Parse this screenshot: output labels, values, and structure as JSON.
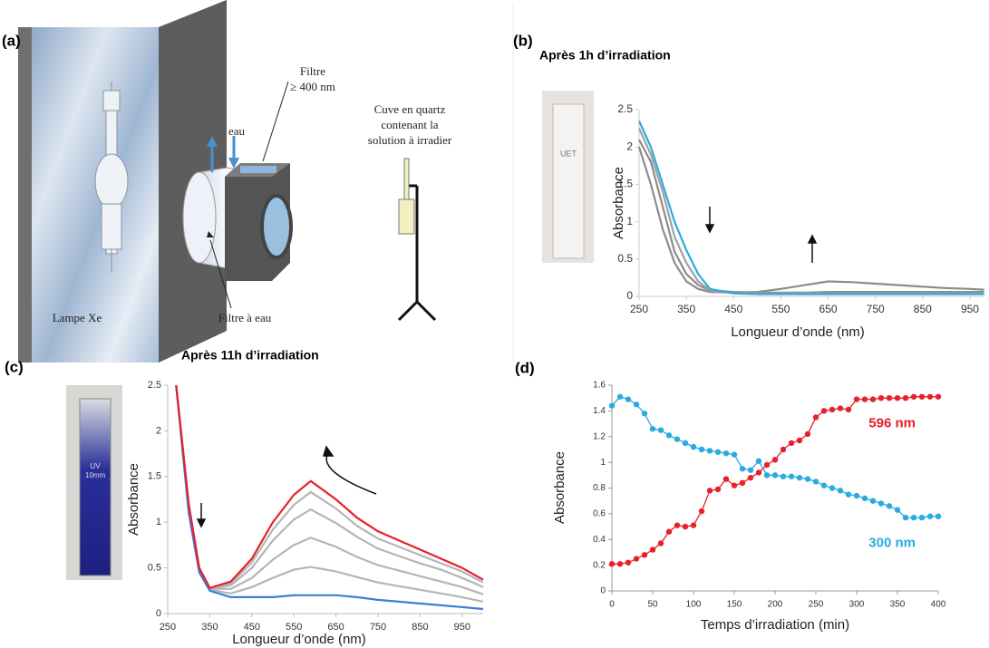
{
  "panel_labels": [
    "(a)",
    "(b)",
    "(c)",
    "(d)"
  ],
  "diagram": {
    "filter": "Filtre",
    "filter_spec": "≥ 400 nm",
    "water": "eau",
    "cell": [
      "Cuve en quartz",
      "contenant la",
      "solution à irradier"
    ],
    "lamp": "Lampe Xe",
    "water_filter": "Filtre à eau"
  },
  "photo_labels": {
    "b": "UET",
    "c": [
      "UV",
      "10mm"
    ]
  },
  "chart_data": [
    {
      "type": "line",
      "title": "Après  1h d’irradiation",
      "xlabel": "Longueur d’onde (nm)",
      "ylabel": "Absorbance",
      "x": [
        250,
        275,
        300,
        325,
        350,
        375,
        400,
        450,
        500,
        550,
        600,
        650,
        700,
        750,
        800,
        850,
        900,
        950,
        980
      ],
      "xlim": [
        250,
        980
      ],
      "ylim": [
        0,
        2.5
      ],
      "xticks": [
        250,
        350,
        450,
        550,
        650,
        750,
        850,
        950
      ],
      "yticks": [
        0,
        0.5,
        1,
        1.5,
        2,
        2.5
      ],
      "series": [
        {
          "color": "#8c8c8c",
          "values": [
            2.0,
            1.5,
            0.9,
            0.45,
            0.2,
            0.1,
            0.06,
            0.05,
            0.06,
            0.1,
            0.15,
            0.2,
            0.19,
            0.17,
            0.15,
            0.13,
            0.11,
            0.1,
            0.09
          ]
        },
        {
          "color": "#8c8c8c",
          "values": [
            2.1,
            1.8,
            1.2,
            0.6,
            0.3,
            0.15,
            0.08,
            0.06,
            0.05,
            0.05,
            0.05,
            0.06,
            0.06,
            0.06,
            0.06,
            0.06,
            0.06,
            0.06,
            0.06
          ]
        },
        {
          "color": "#a0a0a0",
          "values": [
            2.25,
            1.9,
            1.4,
            0.8,
            0.45,
            0.2,
            0.08,
            0.04,
            0.04,
            0.04,
            0.04,
            0.04,
            0.04,
            0.04,
            0.04,
            0.04,
            0.04,
            0.04,
            0.04
          ]
        },
        {
          "color": "#29abe2",
          "values": [
            2.35,
            2.0,
            1.5,
            1.0,
            0.62,
            0.3,
            0.1,
            0.04,
            0.03,
            0.03,
            0.03,
            0.03,
            0.03,
            0.03,
            0.03,
            0.03,
            0.03,
            0.03,
            0.03
          ]
        }
      ]
    },
    {
      "type": "line",
      "title": "Après  11h d’irradiation",
      "xlabel": "Longueur d’onde (nm)",
      "ylabel": "Absorbance",
      "x": [
        270,
        300,
        325,
        350,
        400,
        450,
        500,
        550,
        590,
        650,
        700,
        750,
        800,
        850,
        900,
        950,
        1000
      ],
      "xlim": [
        250,
        1000
      ],
      "ylim": [
        0,
        2.5
      ],
      "xticks": [
        250,
        350,
        450,
        550,
        650,
        750,
        850,
        950
      ],
      "yticks": [
        0,
        0.5,
        1,
        1.5,
        2,
        2.5
      ],
      "series": [
        {
          "color": "#b5b5b5",
          "values": [
            2.5,
            1.13,
            0.46,
            0.26,
            0.22,
            0.29,
            0.39,
            0.48,
            0.51,
            0.46,
            0.4,
            0.34,
            0.3,
            0.26,
            0.22,
            0.18,
            0.13
          ]
        },
        {
          "color": "#b5b5b5",
          "values": [
            2.5,
            1.15,
            0.48,
            0.27,
            0.27,
            0.39,
            0.59,
            0.75,
            0.83,
            0.73,
            0.62,
            0.53,
            0.47,
            0.41,
            0.35,
            0.29,
            0.21
          ]
        },
        {
          "color": "#b5b5b5",
          "values": [
            2.5,
            1.18,
            0.49,
            0.27,
            0.31,
            0.5,
            0.8,
            1.03,
            1.14,
            0.99,
            0.84,
            0.71,
            0.63,
            0.55,
            0.48,
            0.39,
            0.29
          ]
        },
        {
          "color": "#b5b5b5",
          "values": [
            2.5,
            1.19,
            0.5,
            0.28,
            0.33,
            0.56,
            0.92,
            1.19,
            1.33,
            1.15,
            0.96,
            0.82,
            0.73,
            0.64,
            0.55,
            0.46,
            0.34
          ]
        },
        {
          "color": "#3a7fd5",
          "values": [
            2.5,
            1.1,
            0.45,
            0.25,
            0.18,
            0.18,
            0.18,
            0.2,
            0.2,
            0.2,
            0.18,
            0.15,
            0.13,
            0.11,
            0.09,
            0.07,
            0.05
          ]
        },
        {
          "color": "#e8202a",
          "values": [
            2.5,
            1.2,
            0.5,
            0.28,
            0.35,
            0.6,
            1.0,
            1.3,
            1.45,
            1.25,
            1.05,
            0.9,
            0.8,
            0.7,
            0.6,
            0.5,
            0.37
          ]
        }
      ]
    },
    {
      "type": "line",
      "markers": true,
      "xlabel": "Temps d’irradiation (min)",
      "ylabel": "Absorbance",
      "x": [
        0,
        10,
        20,
        30,
        40,
        50,
        60,
        70,
        80,
        90,
        100,
        110,
        120,
        130,
        140,
        150,
        160,
        170,
        180,
        190,
        200,
        210,
        220,
        230,
        240,
        250,
        260,
        270,
        280,
        290,
        300,
        310,
        320,
        330,
        340,
        350,
        360,
        370,
        380,
        390,
        400
      ],
      "xlim": [
        0,
        400
      ],
      "ylim": [
        0,
        1.6
      ],
      "xticks": [
        0,
        50,
        100,
        150,
        200,
        250,
        300,
        350,
        400
      ],
      "yticks": [
        0,
        0.2,
        0.4,
        0.6,
        0.8,
        1,
        1.2,
        1.4,
        1.6
      ],
      "series": [
        {
          "name": "596 nm",
          "color": "#e8202a",
          "values": [
            0.21,
            0.21,
            0.22,
            0.25,
            0.28,
            0.32,
            0.37,
            0.46,
            0.51,
            0.5,
            0.51,
            0.62,
            0.78,
            0.79,
            0.87,
            0.82,
            0.84,
            0.88,
            0.92,
            0.98,
            1.02,
            1.1,
            1.15,
            1.17,
            1.22,
            1.35,
            1.4,
            1.41,
            1.42,
            1.41,
            1.49,
            1.49,
            1.49,
            1.5,
            1.5,
            1.5,
            1.5,
            1.51,
            1.51,
            1.51,
            1.51
          ]
        },
        {
          "name": "300 nm",
          "color": "#29abe2",
          "values": [
            1.44,
            1.51,
            1.49,
            1.45,
            1.38,
            1.26,
            1.25,
            1.21,
            1.18,
            1.15,
            1.12,
            1.1,
            1.09,
            1.08,
            1.07,
            1.06,
            0.95,
            0.94,
            1.01,
            0.9,
            0.9,
            0.89,
            0.89,
            0.88,
            0.87,
            0.85,
            0.82,
            0.8,
            0.78,
            0.75,
            0.74,
            0.72,
            0.7,
            0.68,
            0.66,
            0.63,
            0.57,
            0.57,
            0.57,
            0.58,
            0.58
          ]
        }
      ]
    }
  ]
}
